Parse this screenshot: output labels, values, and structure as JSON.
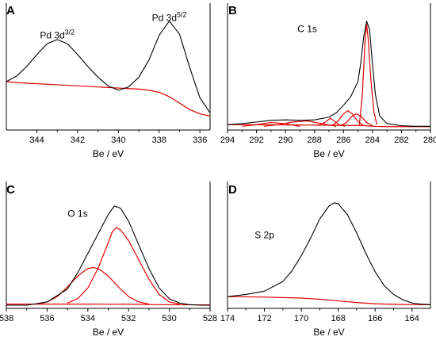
{
  "chart_data": [
    {
      "type": "line",
      "panel": "A",
      "xlabel": "Be / eV",
      "xlim": [
        345.5,
        335.5
      ],
      "xticks": [
        344,
        342,
        340,
        338,
        336
      ],
      "xreversed": true,
      "colors": {
        "envelope": "#000000",
        "components": "#e00000"
      },
      "annotations": [
        {
          "base": "Pd 3d",
          "sup": "3/2",
          "x": 343.0,
          "y": 0.82
        },
        {
          "base": "Pd 3d",
          "sup": "5/2",
          "x": 337.5,
          "y": 0.98
        }
      ],
      "series": [
        {
          "kind": "envelope",
          "x": [
            345.5,
            345,
            344.5,
            344,
            343.5,
            343,
            342.5,
            342,
            341.5,
            341,
            340.5,
            340,
            339.5,
            339,
            338.5,
            338,
            337.5,
            337,
            336.5,
            336,
            335.5
          ],
          "y": [
            0.42,
            0.47,
            0.56,
            0.67,
            0.77,
            0.81,
            0.77,
            0.67,
            0.56,
            0.46,
            0.38,
            0.34,
            0.37,
            0.46,
            0.62,
            0.85,
            0.98,
            0.86,
            0.55,
            0.27,
            0.13
          ]
        },
        {
          "kind": "background",
          "x": [
            345.5,
            345,
            344,
            343,
            342,
            341,
            340,
            339.5,
            339,
            338.5,
            338,
            337.5,
            337,
            336.5,
            336,
            335.5
          ],
          "y": [
            0.42,
            0.41,
            0.4,
            0.39,
            0.38,
            0.37,
            0.36,
            0.355,
            0.35,
            0.34,
            0.32,
            0.28,
            0.22,
            0.16,
            0.12,
            0.1
          ]
        }
      ]
    },
    {
      "type": "line",
      "panel": "B",
      "xlabel": "Be / eV",
      "xlim": [
        294,
        280
      ],
      "xticks": [
        294,
        292,
        290,
        288,
        286,
        284,
        282,
        280
      ],
      "xreversed": true,
      "colors": {
        "envelope": "#000000",
        "components": "#e00000"
      },
      "annotations": [
        {
          "base": "C 1s",
          "sup": "",
          "x": 288.5,
          "y": 0.88
        }
      ],
      "series": [
        {
          "kind": "envelope",
          "x": [
            294,
            293,
            292,
            291,
            290,
            289,
            288,
            287,
            286.5,
            286,
            285.5,
            285,
            284.8,
            284.6,
            284.4,
            284.2,
            284,
            283.8,
            283.5,
            283,
            282,
            281,
            280
          ],
          "y": [
            0.02,
            0.03,
            0.045,
            0.06,
            0.065,
            0.06,
            0.065,
            0.09,
            0.13,
            0.2,
            0.28,
            0.42,
            0.6,
            0.84,
            0.98,
            0.9,
            0.58,
            0.3,
            0.1,
            0.03,
            0.01,
            0.005,
            0.005
          ]
        },
        {
          "kind": "component",
          "x": [
            284.9,
            284.7,
            284.5,
            284.4,
            284.3,
            284.1,
            283.9,
            283.7
          ],
          "y": [
            0.02,
            0.3,
            0.82,
            0.95,
            0.82,
            0.42,
            0.14,
            0.02
          ]
        },
        {
          "kind": "component",
          "x": [
            286.2,
            285.8,
            285.4,
            285.1,
            284.8,
            284.4,
            284.0
          ],
          "y": [
            0.01,
            0.04,
            0.1,
            0.12,
            0.1,
            0.04,
            0.01
          ]
        },
        {
          "kind": "component",
          "x": [
            286.8,
            286.4,
            286.0,
            285.7,
            285.4,
            285.0,
            284.6
          ],
          "y": [
            0.01,
            0.05,
            0.12,
            0.15,
            0.12,
            0.05,
            0.01
          ]
        },
        {
          "kind": "component",
          "x": [
            287.8,
            287.3,
            286.9,
            286.6,
            286.3,
            285.9
          ],
          "y": [
            0.01,
            0.04,
            0.08,
            0.05,
            0.02,
            0.005
          ]
        },
        {
          "kind": "component",
          "x": [
            291.5,
            290.5,
            289.5,
            288.5,
            287.5,
            286.5
          ],
          "y": [
            0.005,
            0.02,
            0.045,
            0.055,
            0.03,
            0.005
          ]
        },
        {
          "kind": "component",
          "x": [
            293,
            292,
            291,
            290,
            289.5,
            289
          ],
          "y": [
            0.005,
            0.02,
            0.04,
            0.03,
            0.015,
            0.005
          ]
        },
        {
          "kind": "background",
          "x": [
            294,
            290,
            286,
            284.6,
            284.3,
            283.8,
            283,
            280
          ],
          "y": [
            0.02,
            0.018,
            0.014,
            0.012,
            0.008,
            0.004,
            0.002,
            0.002
          ]
        }
      ]
    },
    {
      "type": "line",
      "panel": "C",
      "xlabel": "Be / eV",
      "xlim": [
        538,
        528
      ],
      "xticks": [
        538,
        536,
        534,
        532,
        530,
        528
      ],
      "xreversed": true,
      "colors": {
        "envelope": "#000000",
        "components": "#e00000"
      },
      "annotations": [
        {
          "base": "O 1s",
          "sup": "",
          "x": 534.5,
          "y": 0.82
        }
      ],
      "series": [
        {
          "kind": "envelope",
          "x": [
            538,
            537,
            536,
            535,
            534.5,
            534,
            533.5,
            533,
            532.7,
            532.4,
            532,
            531.5,
            531,
            530.5,
            530,
            529.5,
            529,
            528.5,
            528
          ],
          "y": [
            0.0,
            0.0,
            0.03,
            0.15,
            0.3,
            0.48,
            0.66,
            0.84,
            0.92,
            0.9,
            0.78,
            0.56,
            0.34,
            0.16,
            0.06,
            0.02,
            0.005,
            0.0,
            0.0
          ]
        },
        {
          "kind": "component",
          "x": [
            536.5,
            536,
            535.5,
            535,
            534.5,
            534,
            533.7,
            533.4,
            533,
            532.5,
            532,
            531.5,
            531
          ],
          "y": [
            0.01,
            0.03,
            0.08,
            0.17,
            0.27,
            0.34,
            0.35,
            0.33,
            0.27,
            0.17,
            0.08,
            0.03,
            0.01
          ]
        },
        {
          "kind": "component",
          "x": [
            535,
            534.5,
            534,
            533.5,
            533,
            532.8,
            532.6,
            532.4,
            532,
            531.5,
            531,
            530.5,
            530,
            529.5
          ],
          "y": [
            0.02,
            0.06,
            0.16,
            0.34,
            0.58,
            0.68,
            0.72,
            0.7,
            0.6,
            0.42,
            0.24,
            0.1,
            0.03,
            0.01
          ]
        },
        {
          "kind": "background",
          "x": [
            538,
            534,
            532,
            531,
            530,
            528
          ],
          "y": [
            0.01,
            0.01,
            0.009,
            0.006,
            0.004,
            0.003
          ]
        }
      ]
    },
    {
      "type": "line",
      "panel": "D",
      "xlabel": "Be / eV",
      "xlim": [
        174,
        163
      ],
      "xticks": [
        174,
        172,
        170,
        168,
        166,
        164
      ],
      "xreversed": true,
      "colors": {
        "envelope": "#000000",
        "components": "#e00000"
      },
      "annotations": [
        {
          "base": "S 2p",
          "sup": "",
          "x": 172.0,
          "y": 0.62
        }
      ],
      "series": [
        {
          "kind": "envelope",
          "x": [
            174,
            173,
            172,
            171,
            170.5,
            170,
            169.5,
            169,
            168.5,
            168.2,
            168,
            167.5,
            167,
            166.5,
            166,
            165.5,
            165,
            164.5,
            164,
            163.5,
            163
          ],
          "y": [
            0.08,
            0.1,
            0.13,
            0.22,
            0.32,
            0.46,
            0.62,
            0.8,
            0.92,
            0.95,
            0.94,
            0.84,
            0.67,
            0.48,
            0.31,
            0.18,
            0.1,
            0.05,
            0.02,
            0.01,
            0.005
          ]
        },
        {
          "kind": "background",
          "x": [
            174,
            172,
            170,
            169,
            168,
            167,
            166,
            165,
            164,
            163
          ],
          "y": [
            0.08,
            0.075,
            0.066,
            0.055,
            0.04,
            0.025,
            0.013,
            0.008,
            0.005,
            0.004
          ]
        }
      ]
    }
  ]
}
